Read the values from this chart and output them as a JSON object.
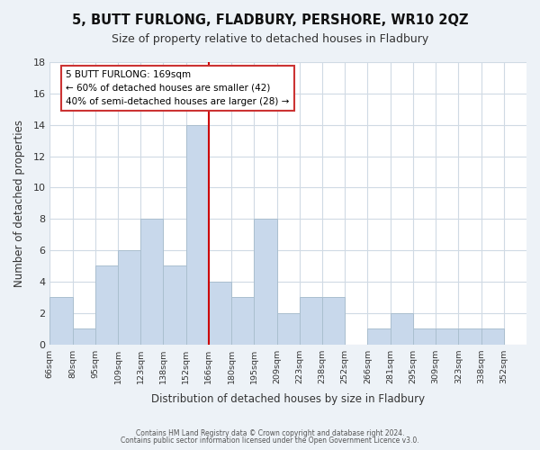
{
  "title": "5, BUTT FURLONG, FLADBURY, PERSHORE, WR10 2QZ",
  "subtitle": "Size of property relative to detached houses in Fladbury",
  "xlabel": "Distribution of detached houses by size in Fladbury",
  "ylabel": "Number of detached properties",
  "bar_color": "#c8d8eb",
  "bar_edge_color": "#aabfcf",
  "bins": [
    "66sqm",
    "80sqm",
    "95sqm",
    "109sqm",
    "123sqm",
    "138sqm",
    "152sqm",
    "166sqm",
    "180sqm",
    "195sqm",
    "209sqm",
    "223sqm",
    "238sqm",
    "252sqm",
    "266sqm",
    "281sqm",
    "295sqm",
    "309sqm",
    "323sqm",
    "338sqm",
    "352sqm"
  ],
  "values": [
    3,
    1,
    5,
    6,
    8,
    5,
    14,
    4,
    3,
    8,
    2,
    3,
    3,
    0,
    1,
    2,
    1,
    1,
    1,
    1
  ],
  "vline_x": 7,
  "vline_color": "#cc0000",
  "annotation_title": "5 BUTT FURLONG: 169sqm",
  "annotation_line1": "← 60% of detached houses are smaller (42)",
  "annotation_line2": "40% of semi-detached houses are larger (28) →",
  "ylim": [
    0,
    18
  ],
  "yticks": [
    0,
    2,
    4,
    6,
    8,
    10,
    12,
    14,
    16,
    18
  ],
  "footer1": "Contains HM Land Registry data © Crown copyright and database right 2024.",
  "footer2": "Contains public sector information licensed under the Open Government Licence v3.0.",
  "bg_color": "#edf2f7",
  "plot_bg_color": "#ffffff",
  "grid_color": "#d0dae4"
}
